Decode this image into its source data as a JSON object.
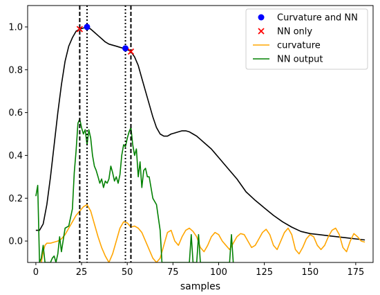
{
  "chart_data": {
    "type": "line",
    "title": "",
    "xlabel": "samples",
    "ylabel": "",
    "xlim": [
      -4.5,
      184.5
    ],
    "ylim": [
      -0.1,
      1.1
    ],
    "x_ticks": [
      0,
      25,
      50,
      75,
      100,
      125,
      150,
      175
    ],
    "x_tick_labels": [
      "0",
      "25",
      "50",
      "75",
      "100",
      "125",
      "150",
      "175"
    ],
    "y_ticks": [
      0.0,
      0.2,
      0.4,
      0.6,
      0.8,
      1.0
    ],
    "y_tick_labels": [
      "0.0",
      "0.2",
      "0.4",
      "0.6",
      "0.8",
      "1.0"
    ],
    "grid": false,
    "legend_position": "top-right",
    "series": [
      {
        "name": "",
        "color": "#000000",
        "style": "solid",
        "x": [
          0,
          2,
          4,
          6,
          8,
          10,
          12,
          14,
          16,
          18,
          20,
          22,
          24,
          26,
          28,
          30,
          32,
          34,
          36,
          38,
          40,
          42,
          44,
          46,
          48,
          50,
          52,
          54,
          56,
          58,
          60,
          62,
          64,
          66,
          68,
          70,
          72,
          74,
          76,
          78,
          80,
          82,
          84,
          86,
          88,
          90,
          92,
          94,
          96,
          98,
          100,
          105,
          110,
          115,
          120,
          125,
          130,
          135,
          140,
          145,
          150,
          155,
          160,
          165,
          170,
          175,
          180
        ],
        "y": [
          0.05,
          0.05,
          0.08,
          0.17,
          0.3,
          0.45,
          0.6,
          0.73,
          0.84,
          0.91,
          0.95,
          0.98,
          0.99,
          0.995,
          1.0,
          0.99,
          0.975,
          0.96,
          0.945,
          0.93,
          0.92,
          0.915,
          0.91,
          0.905,
          0.9,
          0.895,
          0.885,
          0.86,
          0.82,
          0.76,
          0.7,
          0.64,
          0.58,
          0.53,
          0.5,
          0.49,
          0.49,
          0.5,
          0.505,
          0.51,
          0.515,
          0.515,
          0.51,
          0.5,
          0.49,
          0.475,
          0.46,
          0.445,
          0.43,
          0.41,
          0.39,
          0.34,
          0.29,
          0.23,
          0.19,
          0.155,
          0.12,
          0.09,
          0.065,
          0.045,
          0.035,
          0.03,
          0.025,
          0.02,
          0.015,
          0.01,
          0.005
        ]
      },
      {
        "name": "curvature",
        "color": "#ffa500",
        "style": "solid",
        "x": [
          3,
          4,
          5,
          6,
          8,
          10,
          12,
          14,
          16,
          18,
          20,
          22,
          24,
          26,
          28,
          30,
          32,
          34,
          36,
          38,
          40,
          42,
          44,
          46,
          48,
          50,
          52,
          54,
          56,
          58,
          60,
          62,
          64,
          66,
          68,
          70,
          72,
          74,
          76,
          78,
          80,
          82,
          84,
          86,
          88,
          90,
          92,
          94,
          96,
          98,
          100,
          102,
          104,
          106,
          108,
          110,
          112,
          114,
          116,
          118,
          120,
          122,
          124,
          126,
          128,
          130,
          132,
          134,
          136,
          138,
          140,
          142,
          144,
          146,
          148,
          150,
          152,
          154,
          156,
          158,
          160,
          162,
          164,
          166,
          168,
          170,
          172,
          174,
          176,
          178,
          180
        ],
        "y": [
          -0.1,
          -0.05,
          -0.02,
          -0.01,
          -0.01,
          -0.005,
          0.0,
          0.01,
          0.03,
          0.06,
          0.09,
          0.12,
          0.14,
          0.16,
          0.17,
          0.14,
          0.08,
          0.02,
          -0.03,
          -0.07,
          -0.1,
          -0.06,
          0.0,
          0.06,
          0.09,
          0.085,
          0.065,
          0.07,
          0.06,
          0.04,
          0.0,
          -0.04,
          -0.08,
          -0.1,
          -0.08,
          -0.02,
          0.04,
          0.05,
          0.0,
          -0.02,
          0.02,
          0.05,
          0.06,
          0.045,
          0.02,
          -0.03,
          -0.05,
          -0.02,
          0.02,
          0.04,
          0.03,
          0.0,
          -0.02,
          -0.04,
          -0.01,
          0.02,
          0.035,
          0.03,
          0.0,
          -0.03,
          -0.02,
          0.01,
          0.04,
          0.055,
          0.03,
          -0.02,
          -0.04,
          0.0,
          0.04,
          0.06,
          0.03,
          -0.04,
          -0.06,
          -0.03,
          0.01,
          0.03,
          0.02,
          -0.02,
          -0.04,
          -0.02,
          0.02,
          0.05,
          0.06,
          0.03,
          -0.03,
          -0.05,
          0.0,
          0.035,
          0.02,
          0.0,
          -0.005
        ]
      },
      {
        "name": "NN output",
        "color": "#008000",
        "style": "solid",
        "x": [
          0,
          1,
          2,
          3,
          4,
          5,
          6,
          8,
          9,
          10,
          11,
          12,
          13,
          14,
          16,
          18,
          20,
          21,
          22,
          23,
          24,
          25,
          26,
          27,
          28,
          29,
          30,
          31,
          32,
          33,
          34,
          35,
          36,
          37,
          38,
          39,
          40,
          41,
          42,
          43,
          44,
          45,
          46,
          47,
          48,
          49,
          50,
          51,
          52,
          53,
          54,
          55,
          56,
          57,
          58,
          59,
          60,
          61,
          62,
          64,
          66,
          68,
          69,
          70,
          72,
          74,
          76,
          78,
          80,
          82,
          84,
          85,
          86,
          87,
          88,
          89,
          90,
          92,
          94,
          96,
          98,
          100,
          102,
          104,
          106,
          107,
          108
        ],
        "y": [
          0.21,
          0.26,
          -0.1,
          -0.08,
          -0.02,
          -0.1,
          -0.1,
          -0.1,
          -0.08,
          -0.07,
          -0.1,
          -0.06,
          0.02,
          -0.05,
          0.06,
          0.07,
          0.15,
          0.32,
          0.42,
          0.55,
          0.57,
          0.53,
          0.5,
          0.52,
          0.45,
          0.52,
          0.48,
          0.4,
          0.35,
          0.33,
          0.3,
          0.27,
          0.29,
          0.25,
          0.28,
          0.27,
          0.29,
          0.35,
          0.32,
          0.28,
          0.3,
          0.27,
          0.31,
          0.4,
          0.45,
          0.44,
          0.48,
          0.51,
          0.53,
          0.45,
          0.4,
          0.43,
          0.3,
          0.37,
          0.25,
          0.33,
          0.34,
          0.3,
          0.3,
          0.2,
          0.17,
          0.05,
          -0.1,
          -0.1,
          -0.1,
          -0.1,
          -0.1,
          -0.1,
          -0.1,
          -0.1,
          -0.1,
          0.03,
          -0.1,
          -0.1,
          -0.1,
          0.03,
          -0.1,
          -0.1,
          -0.1,
          -0.1,
          -0.1,
          -0.1,
          -0.1,
          -0.1,
          -0.1,
          0.03,
          -0.1
        ]
      }
    ],
    "vertical_lines": [
      {
        "x": 24,
        "style": "dashed",
        "color": "#000000"
      },
      {
        "x": 28,
        "style": "dotted",
        "color": "#000000"
      },
      {
        "x": 49,
        "style": "dotted",
        "color": "#000000"
      },
      {
        "x": 52,
        "style": "dashed",
        "color": "#000000"
      }
    ],
    "markers": {
      "curvature_and_nn": {
        "name": "Curvature and NN",
        "color": "#0000ff",
        "shape": "circle",
        "points": [
          {
            "x": 28,
            "y": 1.0
          },
          {
            "x": 49,
            "y": 0.9
          }
        ]
      },
      "nn_only": {
        "name": "NN only",
        "color": "#ff0000",
        "shape": "x",
        "points": [
          {
            "x": 24,
            "y": 0.99
          },
          {
            "x": 52,
            "y": 0.885
          }
        ]
      }
    },
    "legend": [
      {
        "label": "Curvature and NN",
        "kind": "circle",
        "color": "#0000ff"
      },
      {
        "label": "NN only",
        "kind": "x",
        "color": "#ff0000"
      },
      {
        "label": "curvature",
        "kind": "line",
        "color": "#ffa500"
      },
      {
        "label": "NN output",
        "kind": "line",
        "color": "#008000"
      }
    ]
  }
}
